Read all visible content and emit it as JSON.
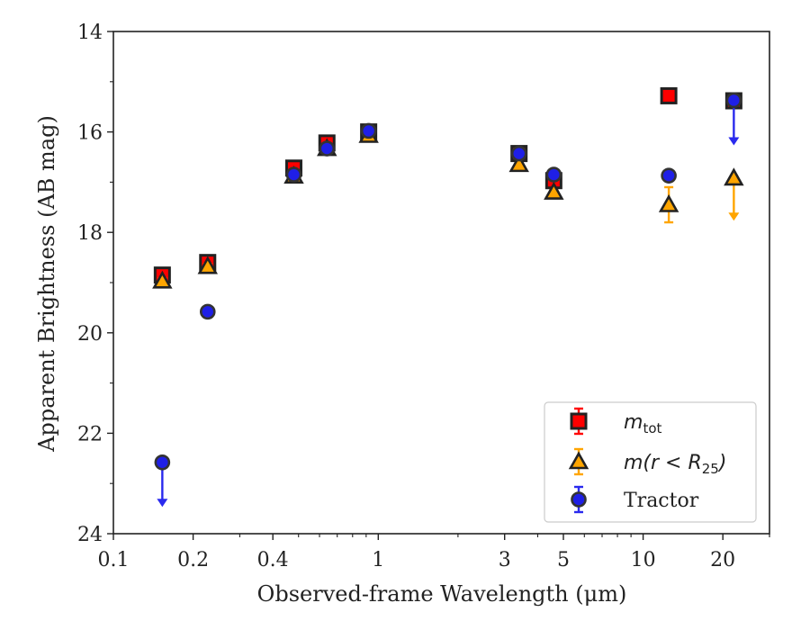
{
  "chart_data": {
    "type": "scatter",
    "xlabel": "Observed-frame Wavelength (μm)",
    "ylabel": "Apparent Brightness (AB mag)",
    "xscale": "log",
    "xlim": [
      0.1,
      30
    ],
    "ylim": [
      24,
      14
    ],
    "y_inverted": true,
    "x_ticks": [
      0.1,
      0.2,
      0.4,
      1,
      3,
      5,
      10,
      20
    ],
    "x_tick_labels": [
      "0.1",
      "0.2",
      "0.4",
      "1",
      "3",
      "5",
      "10",
      "20"
    ],
    "y_ticks": [
      14,
      16,
      18,
      20,
      22,
      24
    ],
    "y_tick_labels": [
      "14",
      "16",
      "18",
      "20",
      "22",
      "24"
    ],
    "grid": false,
    "legend_position": "bottom-right",
    "series": [
      {
        "name": "m_tot",
        "legend_label": {
          "main": "m",
          "sub": "tot",
          "tail": ""
        },
        "marker": "square",
        "color": "#ff0000",
        "edge_color": "#222222",
        "error_color": "#ff0000",
        "points": [
          {
            "x": 0.153,
            "y": 18.85,
            "err": 0.08
          },
          {
            "x": 0.227,
            "y": 18.6,
            "err": 0.06
          },
          {
            "x": 0.48,
            "y": 16.72,
            "err": 0.04
          },
          {
            "x": 0.64,
            "y": 16.22,
            "err": 0.04
          },
          {
            "x": 0.92,
            "y": 16.0,
            "err": 0.03
          },
          {
            "x": 3.4,
            "y": 16.43,
            "err": 0.03
          },
          {
            "x": 4.6,
            "y": 16.97,
            "err": 0.04
          },
          {
            "x": 12.5,
            "y": 15.28,
            "err": 0.03
          },
          {
            "x": 22.0,
            "y": 15.38,
            "err": 0.03
          }
        ]
      },
      {
        "name": "m(r < R_25)",
        "legend_label": {
          "main": "m(r < R",
          "sub": "25",
          "tail": ")"
        },
        "marker": "triangle",
        "color": "#ffa500",
        "edge_color": "#222222",
        "error_color": "#ffa500",
        "points": [
          {
            "x": 0.153,
            "y": 18.97,
            "err": 0.05
          },
          {
            "x": 0.227,
            "y": 18.68,
            "err": 0.05
          },
          {
            "x": 0.48,
            "y": 16.88,
            "err": 0.04
          },
          {
            "x": 0.64,
            "y": 16.33,
            "err": 0.04
          },
          {
            "x": 0.92,
            "y": 16.07,
            "err": 0.03
          },
          {
            "x": 3.4,
            "y": 16.65,
            "err": 0.03
          },
          {
            "x": 4.6,
            "y": 17.2,
            "err": 0.04
          },
          {
            "x": 12.5,
            "y": 17.45,
            "err": 0.35
          },
          {
            "x": 22.0,
            "y": 16.92,
            "upper_limit": true,
            "arrow_to": 17.75
          }
        ]
      },
      {
        "name": "Tractor",
        "legend_label": {
          "main": "Tractor",
          "sub": "",
          "tail": ""
        },
        "marker": "circle",
        "color": "#1f1fe6",
        "edge_color": "#333333",
        "error_color": "#2a2aee",
        "points": [
          {
            "x": 0.153,
            "y": 22.58,
            "upper_limit": true,
            "arrow_to": 23.45
          },
          {
            "x": 0.227,
            "y": 19.58,
            "err": 0.05
          },
          {
            "x": 0.48,
            "y": 16.85,
            "err": 0.03
          },
          {
            "x": 0.64,
            "y": 16.33,
            "err": 0.03
          },
          {
            "x": 0.92,
            "y": 15.98,
            "err": 0.03
          },
          {
            "x": 3.4,
            "y": 16.43,
            "err": 0.03
          },
          {
            "x": 4.6,
            "y": 16.85,
            "err": 0.03
          },
          {
            "x": 12.5,
            "y": 16.87,
            "err": 0.08
          },
          {
            "x": 22.0,
            "y": 15.37,
            "upper_limit": true,
            "arrow_to": 16.25
          }
        ]
      }
    ]
  }
}
